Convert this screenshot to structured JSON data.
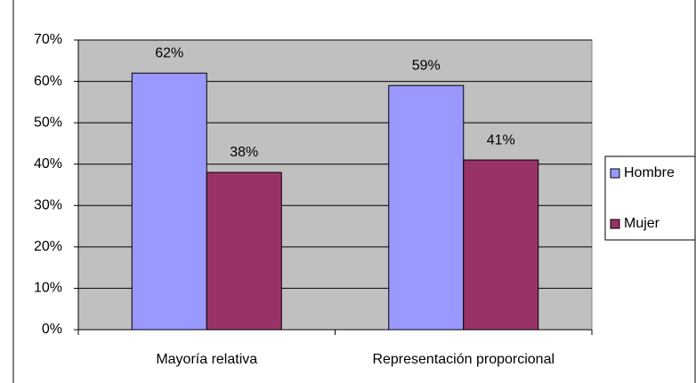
{
  "chart_data": {
    "type": "bar",
    "categories": [
      "Mayoría relativa",
      "Representación proporcional"
    ],
    "series": [
      {
        "name": "Hombre",
        "color": "#9999ff",
        "values": [
          62,
          59
        ],
        "value_labels": [
          "62%",
          "59%"
        ]
      },
      {
        "name": "Mujer",
        "color": "#993366",
        "values": [
          38,
          41
        ],
        "value_labels": [
          "38%",
          "41%"
        ]
      }
    ],
    "ylim": [
      0,
      70
    ],
    "yticks": [
      {
        "value": 0,
        "label": "0%"
      },
      {
        "value": 10,
        "label": "10%"
      },
      {
        "value": 20,
        "label": "20%"
      },
      {
        "value": 30,
        "label": "30%"
      },
      {
        "value": 40,
        "label": "40%"
      },
      {
        "value": 50,
        "label": "50%"
      },
      {
        "value": 60,
        "label": "60%"
      },
      {
        "value": 70,
        "label": "70%"
      }
    ],
    "grid": true,
    "legend": "right",
    "plot_background": "#c0c0c0"
  }
}
